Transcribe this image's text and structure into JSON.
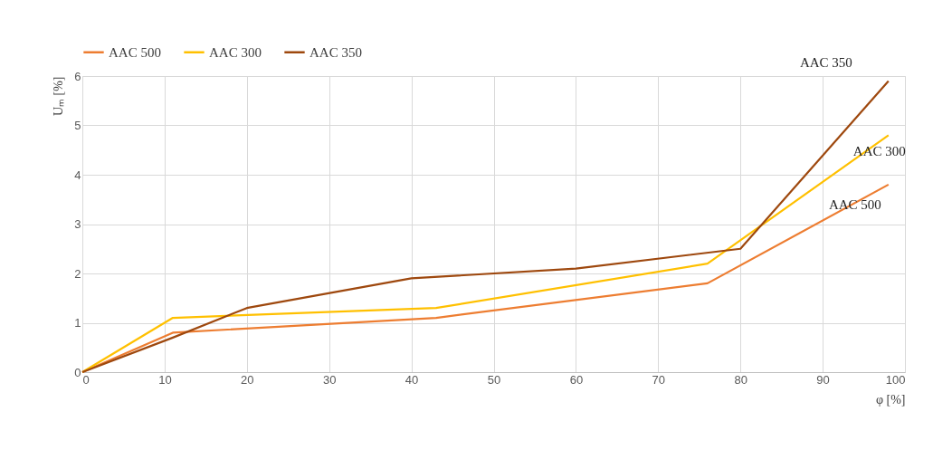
{
  "chart_data": {
    "type": "line",
    "xlabel": "φ [%]",
    "ylabel": "Uₘ [%]",
    "xlim": [
      0,
      100
    ],
    "xticks": [
      0,
      10,
      20,
      30,
      40,
      50,
      60,
      70,
      80,
      90,
      100
    ],
    "ylim": [
      0,
      6
    ],
    "yticks": [
      0,
      1,
      2,
      3,
      4,
      5,
      6
    ],
    "grid": true,
    "legend": "top",
    "series": [
      {
        "name": "AAC 500",
        "color": "#ed7d31",
        "x": [
          0,
          11,
          43,
          76,
          98
        ],
        "values": [
          0,
          0.8,
          1.1,
          1.8,
          3.8
        ]
      },
      {
        "name": "AAC 300",
        "color": "#ffc000",
        "x": [
          0,
          11,
          43,
          76,
          98
        ],
        "values": [
          0,
          1.1,
          1.3,
          2.2,
          4.8
        ]
      },
      {
        "name": "AAC 350",
        "color": "#9e480e",
        "x": [
          0,
          11,
          20,
          40,
          60,
          80,
          98
        ],
        "values": [
          0,
          0.7,
          1.3,
          1.9,
          2.1,
          2.5,
          5.9
        ]
      }
    ]
  }
}
